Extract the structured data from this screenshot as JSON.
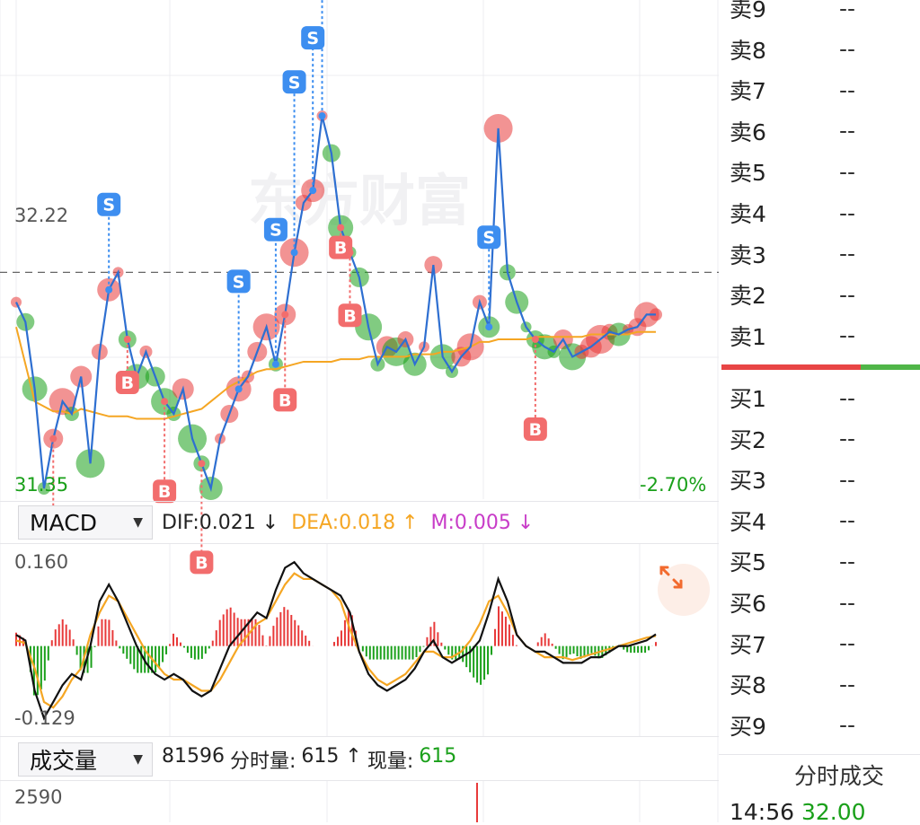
{
  "price_chart": {
    "ref_price": "32.22",
    "low_price": "31.35",
    "change_pct": "-2.70%",
    "watermark": "东方财富",
    "buy_marker": "B",
    "sell_marker": "S",
    "colors": {
      "price_line": "#2e6fd1",
      "avg_line": "#f5a623",
      "up": "#e83a3a",
      "down": "#1aa01a",
      "buy": "#f26d6d",
      "sell": "#3d8ef0"
    }
  },
  "macd": {
    "selector_label": "MACD",
    "dif": "DIF:0.021 ↓",
    "dea": "DEA:0.018 ↑",
    "m": "M:0.005 ↓",
    "y_top": "0.160",
    "y_bottom": "-0.129"
  },
  "volume": {
    "selector_label": "成交量",
    "summary_number": "81596",
    "fsl_label": "分时量: ",
    "fsl_value": "615 ↑",
    "xl_label": "现量: ",
    "xl_value": "615",
    "y_top": "2590"
  },
  "orderbook": {
    "sell": [
      {
        "label": "卖9",
        "value": "--"
      },
      {
        "label": "卖8",
        "value": "--"
      },
      {
        "label": "卖7",
        "value": "--"
      },
      {
        "label": "卖6",
        "value": "--"
      },
      {
        "label": "卖5",
        "value": "--"
      },
      {
        "label": "卖4",
        "value": "--"
      },
      {
        "label": "卖3",
        "value": "--"
      },
      {
        "label": "卖2",
        "value": "--"
      },
      {
        "label": "卖1",
        "value": "--"
      }
    ],
    "buy": [
      {
        "label": "买1",
        "value": "--"
      },
      {
        "label": "买2",
        "value": "--"
      },
      {
        "label": "买3",
        "value": "--"
      },
      {
        "label": "买4",
        "value": "--"
      },
      {
        "label": "买5",
        "value": "--"
      },
      {
        "label": "买6",
        "value": "--"
      },
      {
        "label": "买7",
        "value": "--"
      },
      {
        "label": "买8",
        "value": "--"
      },
      {
        "label": "买9",
        "value": "--"
      }
    ],
    "buy_ratio": 0.7,
    "trade_title": "分时成交",
    "last_trade": {
      "time": "14:56",
      "price": "32.00"
    }
  },
  "chart_data": {
    "type": "line",
    "title": "",
    "ylim": [
      31.35,
      33.1
    ],
    "ref_price": 32.22,
    "series": [
      {
        "values": [
          32.1,
          32.02,
          31.75,
          31.35,
          31.55,
          31.7,
          31.65,
          31.8,
          31.45,
          31.9,
          32.15,
          32.22,
          31.95,
          31.8,
          31.9,
          31.8,
          31.7,
          31.65,
          31.75,
          31.55,
          31.45,
          31.35,
          31.55,
          31.65,
          31.75,
          31.8,
          31.9,
          32.0,
          31.85,
          32.05,
          32.3,
          32.5,
          32.55,
          32.85,
          32.7,
          32.4,
          32.3,
          32.2,
          32.0,
          31.85,
          31.92,
          31.9,
          31.95,
          31.85,
          31.92,
          32.25,
          31.88,
          31.82,
          31.88,
          31.92,
          32.1,
          32.0,
          32.8,
          32.22,
          32.1,
          32.0,
          31.95,
          31.92,
          31.9,
          31.95,
          31.88,
          31.9,
          31.92,
          31.95,
          31.98,
          31.97,
          31.99,
          32.0,
          32.05,
          32.05
        ]
      },
      {
        "values": [
          32.0,
          31.85,
          31.7,
          31.68,
          31.66,
          31.66,
          31.65,
          31.67,
          31.66,
          31.65,
          31.64,
          31.64,
          31.64,
          31.63,
          31.63,
          31.63,
          31.63,
          31.64,
          31.65,
          31.66,
          31.67,
          31.7,
          31.73,
          31.76,
          31.78,
          31.8,
          31.82,
          31.83,
          31.83,
          31.84,
          31.85,
          31.86,
          31.86,
          31.86,
          31.86,
          31.87,
          31.87,
          31.87,
          31.88,
          31.88,
          31.88,
          31.88,
          31.88,
          31.89,
          31.89,
          31.89,
          31.9,
          31.9,
          31.91,
          31.92,
          31.94,
          31.94,
          31.95,
          31.95,
          31.95,
          31.95,
          31.96,
          31.96,
          31.96,
          31.96,
          31.96,
          31.96,
          31.97,
          31.97,
          31.97,
          31.97,
          31.97,
          31.98,
          31.98,
          31.98
        ]
      }
    ],
    "macd_dif": [
      0.02,
      0.01,
      -0.08,
      -0.129,
      -0.1,
      -0.07,
      -0.05,
      -0.06,
      0.0,
      0.08,
      0.11,
      0.08,
      0.04,
      0.0,
      -0.03,
      -0.05,
      -0.06,
      -0.05,
      -0.06,
      -0.08,
      -0.09,
      -0.08,
      -0.04,
      0.0,
      0.02,
      0.04,
      0.06,
      0.05,
      0.1,
      0.14,
      0.15,
      0.13,
      0.12,
      0.11,
      0.1,
      0.09,
      0.06,
      -0.01,
      -0.05,
      -0.07,
      -0.08,
      -0.07,
      -0.06,
      -0.04,
      -0.01,
      0.01,
      -0.02,
      -0.03,
      -0.02,
      -0.01,
      0.01,
      0.06,
      0.12,
      0.08,
      0.02,
      0.0,
      -0.01,
      -0.01,
      -0.02,
      -0.03,
      -0.03,
      -0.03,
      -0.02,
      -0.02,
      -0.01,
      0.0,
      0.0,
      0.005,
      0.01,
      0.021
    ],
    "macd_dea": [
      0.01,
      0.005,
      -0.04,
      -0.1,
      -0.11,
      -0.09,
      -0.06,
      -0.04,
      0.02,
      0.06,
      0.09,
      0.08,
      0.05,
      0.02,
      -0.01,
      -0.03,
      -0.05,
      -0.06,
      -0.06,
      -0.07,
      -0.08,
      -0.08,
      -0.06,
      -0.03,
      0.0,
      0.02,
      0.04,
      0.05,
      0.08,
      0.11,
      0.13,
      0.12,
      0.12,
      0.11,
      0.1,
      0.08,
      0.03,
      -0.01,
      -0.04,
      -0.06,
      -0.07,
      -0.06,
      -0.05,
      -0.03,
      -0.01,
      -0.01,
      -0.02,
      -0.02,
      -0.01,
      0.01,
      0.04,
      0.08,
      0.09,
      0.06,
      0.02,
      0.0,
      -0.01,
      -0.02,
      -0.02,
      -0.02,
      -0.025,
      -0.02,
      -0.015,
      -0.01,
      -0.005,
      0.0,
      0.005,
      0.01,
      0.015,
      0.018
    ]
  }
}
